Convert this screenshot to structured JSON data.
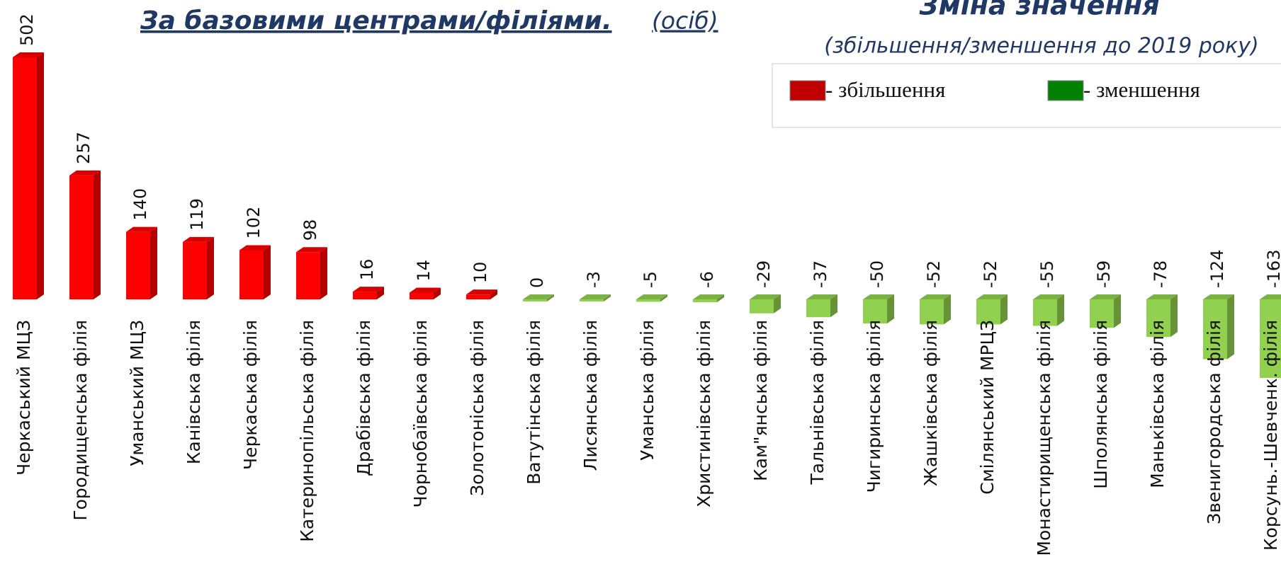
{
  "chart_data": {
    "type": "bar",
    "title": "За  базовими центрами/філіями.",
    "title_unit": "(осіб)",
    "subtitle": "Зміна значення",
    "subtitle_note": "(збільшення/зменшення до 2019 року)",
    "categories": [
      "Черкаський МЦЗ",
      "Городищенська філія",
      "Уманський МЦЗ",
      "Канівська філія",
      "Черкаська філія",
      "Катеринопільська філія",
      "Драбівська філія",
      "Чорнобаївська філія",
      "Золотоніська філія",
      "Ватутінська філія",
      "Лисянська філія",
      "Уманська філія",
      "Христинівська філія",
      "Кам\"янська філія",
      "Тальнівська філія",
      "Чигиринська філія",
      "Жашківська філія",
      "Смілянський МРЦЗ",
      "Монастирищенська філія",
      "Шполянська філія",
      "Маньківська філія",
      "Звенигородська філія",
      "Корсунь.-Шевченк. філія"
    ],
    "values": [
      502,
      257,
      140,
      119,
      102,
      98,
      16,
      14,
      10,
      0,
      -3,
      -5,
      -6,
      -29,
      -37,
      -50,
      -52,
      -52,
      -55,
      -59,
      -78,
      -124,
      -163
    ],
    "legend": [
      {
        "name": "- збільшення",
        "color": "#ff0000"
      },
      {
        "name": "- зменшення",
        "color": "#92d050"
      }
    ]
  }
}
